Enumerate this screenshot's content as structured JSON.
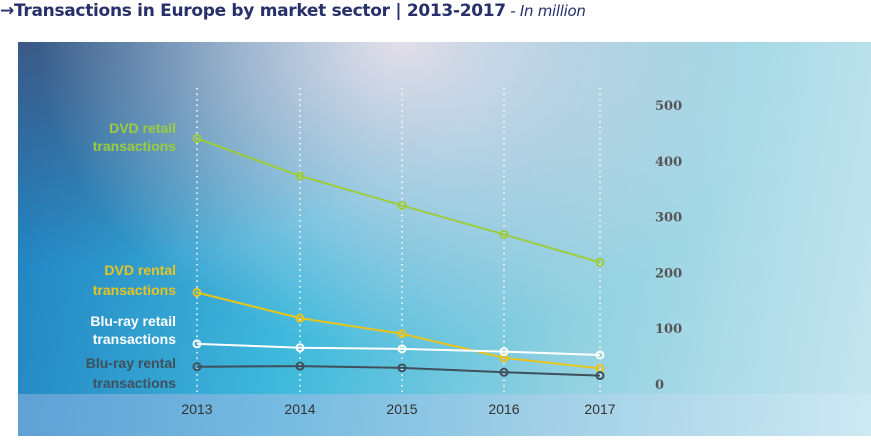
{
  "title": {
    "arrow": "→",
    "main": "Transactions in Europe by market sector | 2013-2017",
    "sub": " - In million"
  },
  "chart_data": {
    "type": "line",
    "title": "Transactions in Europe by market sector | 2013-2017",
    "ylabel": "In million",
    "x": [
      "2013",
      "2014",
      "2015",
      "2016",
      "2017"
    ],
    "ylim": [
      0,
      500
    ],
    "yticks": [
      "0",
      "100",
      "200",
      "300",
      "400",
      "500"
    ],
    "grid": "vertical dotted",
    "series": [
      {
        "name": "DVD retail",
        "label": [
          "DVD retail",
          "transactions"
        ],
        "color": "#9ccc3c",
        "values": [
          440,
          373,
          320,
          268,
          218
        ]
      },
      {
        "name": "DVD rental",
        "label": [
          "DVD rental",
          "transactions"
        ],
        "color": "#e8c41e",
        "values": [
          164,
          118,
          90,
          47,
          28
        ]
      },
      {
        "name": "Blu-ray retail",
        "label": [
          "Blu-ray retail",
          "transactions"
        ],
        "color": "#ffffff",
        "values": [
          72,
          65,
          63,
          58,
          52
        ]
      },
      {
        "name": "Blu-ray rental",
        "label": [
          "Blu-ray rental",
          "transactions"
        ],
        "color": "#3f4f5c",
        "values": [
          31,
          32,
          29,
          21,
          15
        ]
      }
    ]
  }
}
